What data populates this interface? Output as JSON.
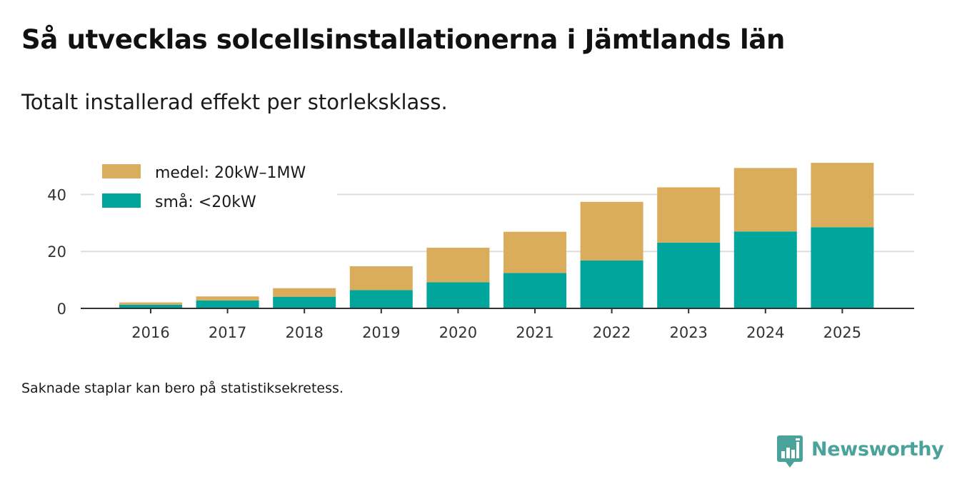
{
  "title": "Så utvecklas solcellsinstallationerna i Jämtlands län",
  "subtitle": "Totalt installerad effekt per storleksklass.",
  "footnote": "Saknade staplar kan bero på statistiksekretess.",
  "brand": "Newsworthy",
  "colors": {
    "medel": "#d9ad5b",
    "sma": "#00a69c",
    "grid": "#dddddd",
    "axis": "#333333",
    "brand": "#4aa39a"
  },
  "chart_data": {
    "type": "bar",
    "stacked": true,
    "categories": [
      "2016",
      "2017",
      "2018",
      "2019",
      "2020",
      "2021",
      "2022",
      "2023",
      "2024",
      "2025"
    ],
    "series": [
      {
        "name": "små: <20kW",
        "key": "sma",
        "values": [
          1.3,
          2.8,
          4.1,
          6.4,
          9.2,
          12.4,
          16.8,
          23.1,
          27.0,
          28.5
        ]
      },
      {
        "name": "medel: 20kW–1MW",
        "key": "medel",
        "values": [
          0.8,
          1.4,
          3.0,
          8.4,
          12.1,
          14.5,
          20.6,
          19.4,
          22.3,
          22.6
        ]
      }
    ],
    "yticks": [
      "0",
      "20",
      "40"
    ],
    "ylim": [
      0,
      52
    ],
    "xlabel": "",
    "ylabel": "",
    "grid": true,
    "legend": "top-left",
    "legend_order": [
      "medel: 20kW–1MW",
      "små: <20kW"
    ]
  }
}
